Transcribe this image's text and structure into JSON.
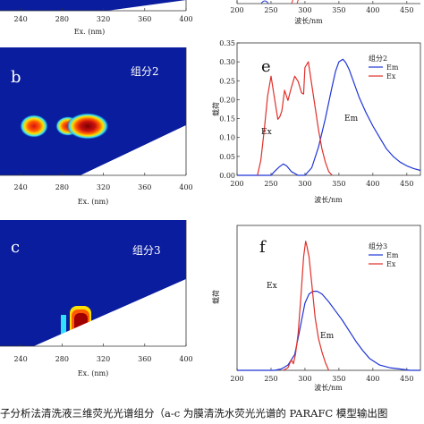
{
  "caption": "子分析法清洗液三维荧光光谱组分（a-c 为膜清洗水荧光光谱的 PARAFC 模型输出图",
  "colors": {
    "em": "#1f35d6",
    "ex": "#e0302a",
    "eem_background": "#0a1d9e"
  },
  "chart_data": [
    {
      "type": "heatmap",
      "panel_letter": "",
      "component_label": "",
      "xlabel": "Ex. (nm)",
      "xticks": [
        "240",
        "280",
        "320",
        "360",
        "400"
      ],
      "xlim": [
        220,
        400
      ]
    },
    {
      "type": "heatmap",
      "panel_letter": "b",
      "component_label": "组分2",
      "xlabel": "Ex. (nm)",
      "xticks": [
        "240",
        "280",
        "320",
        "360",
        "400"
      ],
      "xlim": [
        220,
        400
      ],
      "peaks": [
        {
          "ex": 240,
          "intensity": 0.85
        },
        {
          "ex": 272,
          "intensity": 0.6
        },
        {
          "ex": 300,
          "intensity": 1.0
        }
      ]
    },
    {
      "type": "heatmap",
      "panel_letter": "c",
      "component_label": "组分3",
      "xlabel": "Ex. (nm)",
      "xticks": [
        "240",
        "280",
        "320",
        "360",
        "400"
      ],
      "xlim": [
        220,
        400
      ],
      "peaks": [
        {
          "ex": 283,
          "intensity": 1.0
        }
      ]
    },
    {
      "type": "line",
      "panel_letter": "",
      "legend_title": "",
      "xlabel": "波长/nm",
      "xticks": [
        "200",
        "250",
        "300",
        "350",
        "400",
        "450"
      ],
      "xlim": [
        200,
        470
      ]
    },
    {
      "type": "line",
      "panel_letter": "e",
      "legend_title": "组分2",
      "xlabel": "波长/nm",
      "ylabel": "载荷",
      "xticks": [
        "200",
        "250",
        "300",
        "350",
        "400",
        "450"
      ],
      "yticks": [
        "0.00",
        "0.05",
        "0.10",
        "0.15",
        "0.20",
        "0.25",
        "0.30",
        "0.35"
      ],
      "xlim": [
        200,
        470
      ],
      "ylim": [
        0,
        0.35
      ],
      "legend_position": "top-right",
      "annotations": [
        {
          "text": "Ex",
          "x": 248,
          "y": 0.115
        },
        {
          "text": "Em",
          "x": 390,
          "y": 0.135
        }
      ],
      "series": [
        {
          "name": "Em",
          "x": [
            200,
            250,
            255,
            262,
            268,
            273,
            280,
            290,
            300,
            310,
            320,
            330,
            340,
            345,
            350,
            356,
            360,
            365,
            370,
            380,
            390,
            400,
            410,
            420,
            430,
            440,
            450,
            460,
            470
          ],
          "y": [
            0.0,
            0.0,
            0.01,
            0.022,
            0.03,
            0.025,
            0.01,
            0.0,
            0.0,
            0.02,
            0.075,
            0.15,
            0.235,
            0.275,
            0.3,
            0.307,
            0.298,
            0.28,
            0.255,
            0.205,
            0.165,
            0.13,
            0.1,
            0.07,
            0.05,
            0.035,
            0.025,
            0.018,
            0.013
          ]
        },
        {
          "name": "Ex",
          "x": [
            230,
            235,
            240,
            245,
            250,
            255,
            260,
            263,
            266,
            270,
            275,
            280,
            285,
            290,
            295,
            298,
            300,
            305,
            310,
            315,
            320,
            325,
            330,
            335,
            340
          ],
          "y": [
            0.0,
            0.04,
            0.12,
            0.21,
            0.262,
            0.205,
            0.148,
            0.155,
            0.17,
            0.225,
            0.198,
            0.232,
            0.262,
            0.248,
            0.218,
            0.215,
            0.285,
            0.3,
            0.24,
            0.18,
            0.12,
            0.07,
            0.035,
            0.01,
            0.0
          ]
        }
      ]
    },
    {
      "type": "line",
      "panel_letter": "f",
      "legend_title": "组分3",
      "xlabel": "波长/nm",
      "ylabel": "载荷",
      "xticks": [
        "200",
        "250",
        "300",
        "350",
        "400",
        "450"
      ],
      "yticks": [],
      "xlim": [
        200,
        470
      ],
      "ylim": [
        0,
        0.55
      ],
      "legend_position": "top-right",
      "annotations": [
        {
          "text": "Ex",
          "x": 268,
          "y": 0.41
        },
        {
          "text": "Em",
          "x": 362,
          "y": 0.22
        }
      ],
      "series": [
        {
          "name": "Em",
          "x": [
            200,
            255,
            265,
            275,
            285,
            292,
            300,
            306,
            312,
            318,
            325,
            335,
            345,
            355,
            365,
            375,
            385,
            395,
            410,
            425,
            440,
            455,
            470
          ],
          "y": [
            0.0,
            0.0,
            0.005,
            0.02,
            0.06,
            0.15,
            0.255,
            0.29,
            0.3,
            0.3,
            0.29,
            0.26,
            0.225,
            0.19,
            0.15,
            0.11,
            0.075,
            0.045,
            0.02,
            0.01,
            0.005,
            0.0,
            0.0
          ]
        },
        {
          "name": "Ex",
          "x": [
            268,
            275,
            280,
            283,
            286,
            290,
            294,
            298,
            301,
            303,
            306,
            310,
            315,
            320,
            325,
            330,
            335
          ],
          "y": [
            0.0,
            0.01,
            0.04,
            0.025,
            0.06,
            0.14,
            0.28,
            0.43,
            0.49,
            0.47,
            0.43,
            0.33,
            0.2,
            0.12,
            0.07,
            0.03,
            0.0
          ]
        }
      ]
    }
  ]
}
